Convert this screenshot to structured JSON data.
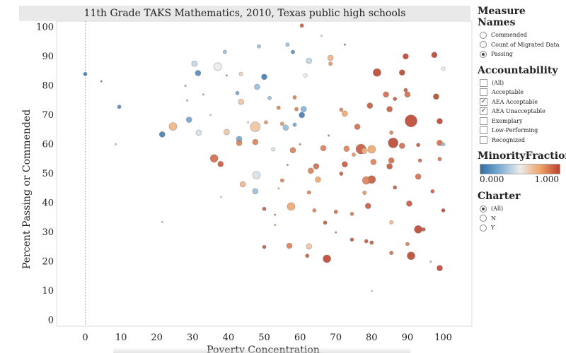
{
  "title": "11th Grade TAKS Mathematics, 2010,  Texas public high schools",
  "chart_data": {
    "type": "scatter",
    "title": "11th Grade TAKS Mathematics, 2010,  Texas public high schools",
    "xlabel": "Poverty Concentration",
    "ylabel": "Percent Passing or Commended",
    "xlim": [
      -8,
      108
    ],
    "ylim": [
      -2,
      102
    ],
    "xticks": [
      0,
      10,
      20,
      30,
      40,
      50,
      60,
      70,
      80,
      90,
      100
    ],
    "yticks": [
      0,
      10,
      20,
      30,
      40,
      50,
      60,
      70,
      80,
      90,
      100
    ],
    "reference_line_x": 0,
    "color_colors": [
      "#2e6ea4",
      "#7fb0d4",
      "#ececec",
      "#f0a46a",
      "#b9412c"
    ],
    "points": [
      {
        "x": 0,
        "y": 84,
        "c": 0.05,
        "s": 2
      },
      {
        "x": 4.5,
        "y": 81.5,
        "c": 0.1,
        "s": 1
      },
      {
        "x": 9.5,
        "y": 72.8,
        "c": 0.1,
        "s": 2
      },
      {
        "x": 8.5,
        "y": 60,
        "c": 0.4,
        "s": 1
      },
      {
        "x": 21.5,
        "y": 63.4,
        "c": 0.05,
        "s": 3
      },
      {
        "x": 24.5,
        "y": 66.1,
        "c": 0.7,
        "s": 4
      },
      {
        "x": 29,
        "y": 68.4,
        "c": 0.2,
        "s": 3
      },
      {
        "x": 30.5,
        "y": 87.5,
        "c": 0.4,
        "s": 3
      },
      {
        "x": 31.5,
        "y": 84.3,
        "c": 0.1,
        "s": 3
      },
      {
        "x": 33,
        "y": 77,
        "c": 0.3,
        "s": 1
      },
      {
        "x": 31.7,
        "y": 64,
        "c": 0.45,
        "s": 3
      },
      {
        "x": 37,
        "y": 86.5,
        "c": 0.5,
        "s": 4
      },
      {
        "x": 39,
        "y": 91.5,
        "c": 0.3,
        "s": 2
      },
      {
        "x": 39.5,
        "y": 64.2,
        "c": 0.65,
        "s": 3
      },
      {
        "x": 36,
        "y": 55.2,
        "c": 0.9,
        "s": 4
      },
      {
        "x": 37.8,
        "y": 53.3,
        "c": 0.95,
        "s": 3
      },
      {
        "x": 39.5,
        "y": 83.5,
        "c": 0.2,
        "s": 1
      },
      {
        "x": 42.5,
        "y": 77.5,
        "c": 0.2,
        "s": 2
      },
      {
        "x": 43.5,
        "y": 74.5,
        "c": 0.65,
        "s": 3
      },
      {
        "x": 43.5,
        "y": 84,
        "c": 0.6,
        "s": 2
      },
      {
        "x": 43,
        "y": 61.8,
        "c": 0.2,
        "s": 3
      },
      {
        "x": 43,
        "y": 60.5,
        "c": 0.85,
        "s": 3
      },
      {
        "x": 44,
        "y": 46.4,
        "c": 0.7,
        "s": 3
      },
      {
        "x": 47.5,
        "y": 66,
        "c": 0.65,
        "s": 5
      },
      {
        "x": 47.5,
        "y": 60.8,
        "c": 0.85,
        "s": 3
      },
      {
        "x": 48,
        "y": 79.6,
        "c": 0.3,
        "s": 3
      },
      {
        "x": 47.8,
        "y": 49.5,
        "c": 0.45,
        "s": 4
      },
      {
        "x": 47.5,
        "y": 44,
        "c": 0.3,
        "s": 3
      },
      {
        "x": 50,
        "y": 83,
        "c": 0.05,
        "s": 3
      },
      {
        "x": 48.5,
        "y": 93.4,
        "c": 0.3,
        "s": 2
      },
      {
        "x": 50.5,
        "y": 67.5,
        "c": 0.8,
        "s": 2
      },
      {
        "x": 51.5,
        "y": 75.8,
        "c": 0.3,
        "s": 2
      },
      {
        "x": 52.5,
        "y": 58.3,
        "c": 0.45,
        "s": 2
      },
      {
        "x": 54,
        "y": 72.5,
        "c": 0.85,
        "s": 2
      },
      {
        "x": 55,
        "y": 67,
        "c": 0.8,
        "s": 2
      },
      {
        "x": 56,
        "y": 65.7,
        "c": 0.3,
        "s": 3
      },
      {
        "x": 56.5,
        "y": 94,
        "c": 0.3,
        "s": 2
      },
      {
        "x": 58,
        "y": 91.5,
        "c": 0.1,
        "s": 2
      },
      {
        "x": 58.5,
        "y": 76,
        "c": 0.85,
        "s": 2
      },
      {
        "x": 58.5,
        "y": 66.7,
        "c": 0.2,
        "s": 2
      },
      {
        "x": 59,
        "y": 72,
        "c": 0.85,
        "s": 2
      },
      {
        "x": 60.5,
        "y": 70,
        "c": 0.05,
        "s": 3
      },
      {
        "x": 61,
        "y": 72,
        "c": 0.25,
        "s": 3
      },
      {
        "x": 62.5,
        "y": 88.5,
        "c": 0.4,
        "s": 3
      },
      {
        "x": 61.5,
        "y": 83.5,
        "c": 0.5,
        "s": 2
      },
      {
        "x": 60.5,
        "y": 100.5,
        "c": 0.95,
        "s": 2
      },
      {
        "x": 57.5,
        "y": 38.8,
        "c": 0.75,
        "s": 4
      },
      {
        "x": 57,
        "y": 25.4,
        "c": 0.85,
        "s": 3
      },
      {
        "x": 62.5,
        "y": 25.2,
        "c": 0.65,
        "s": 3
      },
      {
        "x": 50,
        "y": 25,
        "c": 0.95,
        "s": 2
      },
      {
        "x": 50,
        "y": 38,
        "c": 0.95,
        "s": 2
      },
      {
        "x": 55,
        "y": 47.7,
        "c": 0.85,
        "s": 2
      },
      {
        "x": 58,
        "y": 58,
        "c": 0.85,
        "s": 3
      },
      {
        "x": 63,
        "y": 51,
        "c": 0.85,
        "s": 3
      },
      {
        "x": 64.5,
        "y": 52.5,
        "c": 0.9,
        "s": 3
      },
      {
        "x": 65,
        "y": 48,
        "c": 0.75,
        "s": 3
      },
      {
        "x": 66.5,
        "y": 58.7,
        "c": 0.85,
        "s": 3
      },
      {
        "x": 68.5,
        "y": 89.5,
        "c": 0.7,
        "s": 3
      },
      {
        "x": 68.5,
        "y": 87.5,
        "c": 0.8,
        "s": 2
      },
      {
        "x": 71.5,
        "y": 71.8,
        "c": 0.85,
        "s": 2
      },
      {
        "x": 72.5,
        "y": 70.5,
        "c": 0.75,
        "s": 3
      },
      {
        "x": 73,
        "y": 58.5,
        "c": 0.85,
        "s": 3
      },
      {
        "x": 72.5,
        "y": 53.2,
        "c": 0.95,
        "s": 3
      },
      {
        "x": 71.5,
        "y": 50,
        "c": 0.95,
        "s": 2
      },
      {
        "x": 75,
        "y": 56.5,
        "c": 0.8,
        "s": 2
      },
      {
        "x": 76,
        "y": 66,
        "c": 0.9,
        "s": 3
      },
      {
        "x": 77,
        "y": 58.4,
        "c": 0.95,
        "s": 5
      },
      {
        "x": 78,
        "y": 57.8,
        "c": 0.7,
        "s": 3
      },
      {
        "x": 79.5,
        "y": 73.2,
        "c": 0.95,
        "s": 3
      },
      {
        "x": 80,
        "y": 58.3,
        "c": 0.75,
        "s": 4
      },
      {
        "x": 81.5,
        "y": 84.5,
        "c": 1,
        "s": 4
      },
      {
        "x": 80,
        "y": 48,
        "c": 0.95,
        "s": 4
      },
      {
        "x": 78.5,
        "y": 47.7,
        "c": 0.85,
        "s": 4
      },
      {
        "x": 78,
        "y": 43.5,
        "c": 0.8,
        "s": 2
      },
      {
        "x": 79,
        "y": 39,
        "c": 0.95,
        "s": 3
      },
      {
        "x": 80.5,
        "y": 54,
        "c": 0.85,
        "s": 3
      },
      {
        "x": 85.5,
        "y": 64,
        "c": 0.85,
        "s": 2
      },
      {
        "x": 86,
        "y": 60.5,
        "c": 1,
        "s": 5
      },
      {
        "x": 85.5,
        "y": 54.5,
        "c": 0.9,
        "s": 3
      },
      {
        "x": 85,
        "y": 52.5,
        "c": 0.95,
        "s": 3
      },
      {
        "x": 85,
        "y": 72,
        "c": 0.95,
        "s": 3
      },
      {
        "x": 84,
        "y": 77,
        "c": 0.9,
        "s": 3
      },
      {
        "x": 86.5,
        "y": 75.5,
        "c": 0.95,
        "s": 2
      },
      {
        "x": 88.5,
        "y": 84.5,
        "c": 1,
        "s": 3
      },
      {
        "x": 88.5,
        "y": 59.5,
        "c": 0.9,
        "s": 3
      },
      {
        "x": 89.5,
        "y": 78.5,
        "c": 0.95,
        "s": 2
      },
      {
        "x": 91,
        "y": 68,
        "c": 1,
        "s": 6
      },
      {
        "x": 90,
        "y": 77,
        "c": 0.9,
        "s": 3
      },
      {
        "x": 89.5,
        "y": 90,
        "c": 1,
        "s": 3
      },
      {
        "x": 86.5,
        "y": 45.3,
        "c": 0.95,
        "s": 2
      },
      {
        "x": 85.5,
        "y": 33.4,
        "c": 0.7,
        "s": 2
      },
      {
        "x": 90.5,
        "y": 39.8,
        "c": 0.95,
        "s": 3
      },
      {
        "x": 93,
        "y": 31,
        "c": 1,
        "s": 4
      },
      {
        "x": 94.5,
        "y": 31,
        "c": 0.95,
        "s": 2
      },
      {
        "x": 91,
        "y": 22,
        "c": 1,
        "s": 4
      },
      {
        "x": 90,
        "y": 26,
        "c": 0.85,
        "s": 2
      },
      {
        "x": 85.5,
        "y": 23,
        "c": 0.9,
        "s": 2
      },
      {
        "x": 80,
        "y": 26.5,
        "c": 0.95,
        "s": 2
      },
      {
        "x": 78.5,
        "y": 27,
        "c": 0.95,
        "s": 2
      },
      {
        "x": 74.5,
        "y": 27.5,
        "c": 0.95,
        "s": 2
      },
      {
        "x": 67.5,
        "y": 21,
        "c": 1,
        "s": 4
      },
      {
        "x": 62,
        "y": 22,
        "c": 0.95,
        "s": 2
      },
      {
        "x": 62.5,
        "y": 43.6,
        "c": 0.85,
        "s": 2
      },
      {
        "x": 64,
        "y": 37.5,
        "c": 0.85,
        "s": 2
      },
      {
        "x": 67,
        "y": 33.3,
        "c": 0.95,
        "s": 2
      },
      {
        "x": 70,
        "y": 37,
        "c": 0.9,
        "s": 2
      },
      {
        "x": 74.5,
        "y": 36.3,
        "c": 0.85,
        "s": 2
      },
      {
        "x": 93,
        "y": 49,
        "c": 0.9,
        "s": 3
      },
      {
        "x": 93.5,
        "y": 54.5,
        "c": 0.9,
        "s": 2
      },
      {
        "x": 93,
        "y": 59.8,
        "c": 0.95,
        "s": 2
      },
      {
        "x": 97.5,
        "y": 90.5,
        "c": 1,
        "s": 3
      },
      {
        "x": 98,
        "y": 76.3,
        "c": 1,
        "s": 3
      },
      {
        "x": 99,
        "y": 67.9,
        "c": 1,
        "s": 3
      },
      {
        "x": 99,
        "y": 60.5,
        "c": 0.9,
        "s": 3
      },
      {
        "x": 100,
        "y": 60,
        "c": 0.3,
        "s": 2
      },
      {
        "x": 100,
        "y": 85.8,
        "c": 0.5,
        "s": 2
      },
      {
        "x": 99,
        "y": 55,
        "c": 0.9,
        "s": 2
      },
      {
        "x": 97,
        "y": 44,
        "c": 0.95,
        "s": 2
      },
      {
        "x": 100,
        "y": 37.5,
        "c": 1,
        "s": 2
      },
      {
        "x": 99,
        "y": 17.8,
        "c": 1,
        "s": 3
      },
      {
        "x": 96.5,
        "y": 20,
        "c": 0.3,
        "s": 1
      },
      {
        "x": 80,
        "y": 10,
        "c": 0.5,
        "s": 1
      },
      {
        "x": 70,
        "y": 30,
        "c": 0.9,
        "s": 1
      },
      {
        "x": 66,
        "y": 97,
        "c": 0.6,
        "s": 1
      },
      {
        "x": 72.5,
        "y": 94,
        "c": 0.95,
        "s": 1
      },
      {
        "x": 54,
        "y": 45,
        "c": 0.7,
        "s": 1
      },
      {
        "x": 53,
        "y": 36,
        "c": 0.9,
        "s": 1
      },
      {
        "x": 53,
        "y": 32.5,
        "c": 0.75,
        "s": 1
      },
      {
        "x": 45.5,
        "y": 67.5,
        "c": 0.45,
        "s": 1
      },
      {
        "x": 35,
        "y": 70,
        "c": 0.45,
        "s": 1
      },
      {
        "x": 28,
        "y": 80,
        "c": 0.2,
        "s": 1
      },
      {
        "x": 21.5,
        "y": 33.5,
        "c": 0.6,
        "s": 1
      },
      {
        "x": 38,
        "y": 42,
        "c": 0.5,
        "s": 1
      },
      {
        "x": 28.5,
        "y": 75,
        "c": 0.3,
        "s": 1
      },
      {
        "x": 60,
        "y": 60,
        "c": 0.85,
        "s": 1
      },
      {
        "x": 56.5,
        "y": 53,
        "c": 0.85,
        "s": 1
      },
      {
        "x": 68,
        "y": 63,
        "c": 0.9,
        "s": 1
      }
    ]
  },
  "sidebar": {
    "measure_title": "Measure Names",
    "measure_options": [
      "Commended",
      "Count of Migrated Data",
      "Passing"
    ],
    "measure_selected": 2,
    "accountability_title": "Accountability",
    "accountability_options": [
      "(All)",
      "Acceptable",
      "AEA Acceptable",
      "AEA Unacceptable",
      "Exemplary",
      "Low-Performing",
      "Recognized"
    ],
    "accountability_checked": [
      2,
      3
    ],
    "color_title": "MinorityFraction",
    "color_min": "0.000",
    "color_max": "1.000",
    "charter_title": "Charter",
    "charter_options": [
      "(All)",
      "N",
      "Y"
    ],
    "charter_selected": 0
  }
}
